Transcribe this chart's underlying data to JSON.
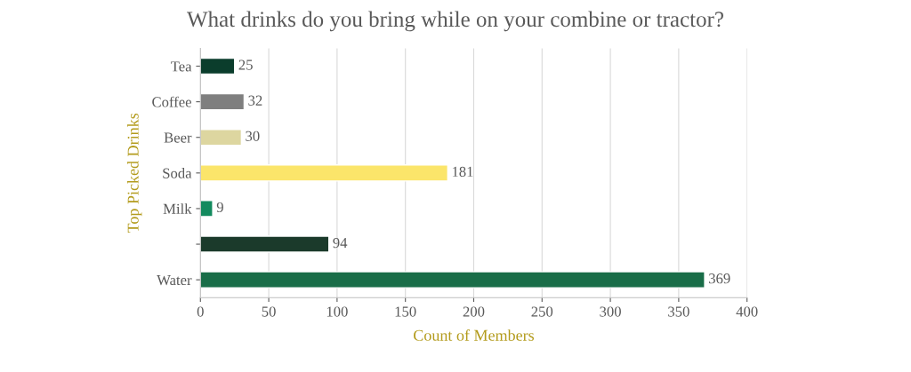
{
  "chart_data": {
    "type": "bar",
    "orientation": "horizontal",
    "title": "What drinks do you bring while on your combine or tractor?",
    "xlabel": "Count of Members",
    "ylabel": "Top Picked Drinks",
    "categories": [
      "Tea",
      "Coffee",
      "Beer",
      "Soda",
      "Milk",
      null,
      "Water"
    ],
    "values": [
      25,
      32,
      30,
      181,
      9,
      94,
      369
    ],
    "colors": [
      "#0b3d2c",
      "#7f7f7f",
      "#ddd6a0",
      "#fbe56a",
      "#138a5e",
      "#1b3a2b",
      "#196d48"
    ],
    "xlim": [
      0,
      400
    ],
    "xticks": [
      0,
      50,
      100,
      150,
      200,
      250,
      300,
      350,
      400
    ],
    "grid": "x",
    "data_labels": true
  }
}
